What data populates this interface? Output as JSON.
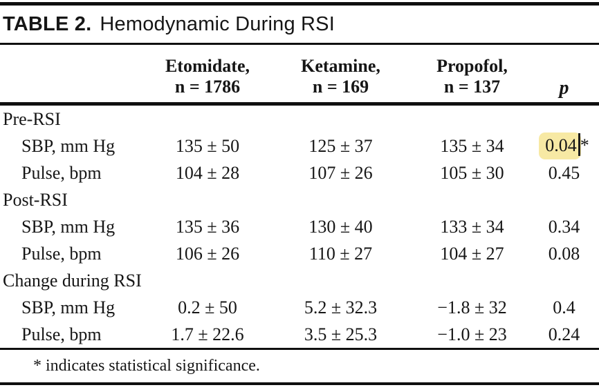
{
  "title": {
    "label": "TABLE 2.",
    "text": "Hemodynamic During RSI"
  },
  "header": {
    "drug1_line1": "Etomidate,",
    "drug1_line2": "n = 1786",
    "drug2_line1": "Ketamine,",
    "drug2_line2": "n = 169",
    "drug3_line1": "Propofol,",
    "drug3_line2": "n = 137",
    "p_label": "p"
  },
  "sections": [
    {
      "label": "Pre-RSI",
      "rows": [
        {
          "label": "SBP, mm Hg",
          "etomidate": "135 ± 50",
          "ketamine": "125 ± 37",
          "propofol": "135 ± 34",
          "p": "0.04",
          "p_suffix": "*",
          "highlighted": true
        },
        {
          "label": "Pulse, bpm",
          "etomidate": "104 ± 28",
          "ketamine": "107 ± 26",
          "propofol": "105 ± 30",
          "p": "0.45"
        }
      ]
    },
    {
      "label": "Post-RSI",
      "rows": [
        {
          "label": "SBP, mm Hg",
          "etomidate": "135 ± 36",
          "ketamine": "130 ± 40",
          "propofol": "133 ± 34",
          "p": "0.34"
        },
        {
          "label": "Pulse, bpm",
          "etomidate": "106 ± 26",
          "ketamine": "110 ± 27",
          "propofol": "104 ± 27",
          "p": "0.08"
        }
      ]
    },
    {
      "label": "Change during RSI",
      "rows": [
        {
          "label": "SBP, mm Hg",
          "etomidate": "0.2 ± 50",
          "ketamine": "5.2 ± 32.3",
          "propofol": "−1.8 ± 32",
          "p": "0.4"
        },
        {
          "label": "Pulse, bpm",
          "etomidate": "1.7 ± 22.6",
          "ketamine": "3.5 ± 25.3",
          "propofol": "−1.0 ± 23",
          "p": "0.24"
        }
      ]
    }
  ],
  "footnote": "* indicates statistical significance.",
  "colors": {
    "highlight": "#F7E9A4",
    "rule": "#0F0F0F",
    "text": "#161616"
  },
  "annotations": {
    "caret": "text-insertion-caret-after-0.04"
  }
}
